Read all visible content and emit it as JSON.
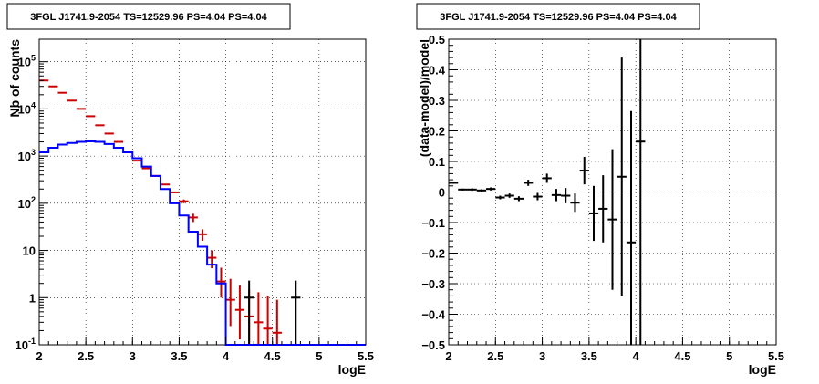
{
  "chart_data": [
    {
      "type": "line",
      "panel": "left",
      "title": "3FGL J1741.9-2054 TS=12529.96 PS=4.04 PS=4.04",
      "xlabel": "logE",
      "ylabel": "Nb of counts",
      "xlim": [
        2,
        5.5
      ],
      "ylim": [
        0.1,
        300000
      ],
      "yscale": "log",
      "grid": true,
      "x_ticks": [
        "2",
        "2.5",
        "3",
        "3.5",
        "4",
        "4.5",
        "5",
        "5.5"
      ],
      "y_ticks": [
        "10^-1",
        "1",
        "10",
        "10^2",
        "10^3",
        "10^4",
        "10^5"
      ],
      "series": [
        {
          "color": "#0000ff",
          "kind": "step-histogram",
          "bin_edges": [
            2.0,
            2.1,
            2.2,
            2.3,
            2.4,
            2.5,
            2.6,
            2.7,
            2.8,
            2.9,
            3.0,
            3.1,
            3.2,
            3.3,
            3.4,
            3.5,
            3.6,
            3.7,
            3.8,
            3.9,
            4.0,
            4.1,
            4.2,
            4.3,
            4.4,
            4.5,
            4.6,
            4.7,
            4.8,
            4.9,
            5.0,
            5.1,
            5.2,
            5.3,
            5.4,
            5.5
          ],
          "values": [
            1200,
            1500,
            1750,
            1900,
            2000,
            2050,
            2000,
            1800,
            1500,
            1200,
            900,
            600,
            380,
            200,
            100,
            55,
            25,
            12,
            5,
            2,
            0.1,
            0.1,
            0.1,
            0.1,
            0.1,
            0.1,
            0.1,
            0.1,
            0.1,
            0.1,
            0.1,
            0.1,
            0.1,
            0.1,
            0.1
          ]
        },
        {
          "color": "#cc0000",
          "kind": "points-with-errors",
          "x": [
            2.05,
            2.15,
            2.25,
            2.35,
            2.45,
            2.55,
            2.65,
            2.75,
            2.85,
            2.95,
            3.05,
            3.15,
            3.25,
            3.35,
            3.45,
            3.55,
            3.65,
            3.75,
            3.85,
            3.95,
            4.05,
            4.15,
            4.25,
            4.35,
            4.45,
            4.55
          ],
          "y": [
            40000,
            30000,
            22000,
            15000,
            10000,
            7000,
            4500,
            3000,
            2000,
            1200,
            800,
            550,
            380,
            250,
            170,
            110,
            50,
            22,
            7,
            2.2,
            0.9,
            0.55,
            0.4,
            0.3,
            0.22,
            0.18
          ],
          "ylo": [
            40000,
            30000,
            22000,
            15000,
            10000,
            7000,
            4500,
            3000,
            2000,
            1200,
            800,
            550,
            380,
            250,
            170,
            100,
            40,
            16,
            4.2,
            1,
            0.25,
            0.13,
            0.1,
            0.1,
            0.1,
            0.1
          ],
          "yhi": [
            40000,
            30000,
            22000,
            15000,
            10000,
            7000,
            4500,
            3000,
            2000,
            1200,
            800,
            550,
            380,
            250,
            170,
            120,
            60,
            28,
            10,
            4.3,
            2.5,
            1.8,
            1.5,
            1.3,
            1.1,
            0.9
          ]
        },
        {
          "color": "#000000",
          "kind": "points-with-errors",
          "x": [
            4.25,
            4.75
          ],
          "y": [
            1,
            1
          ],
          "ylo": [
            0.1,
            0.1
          ],
          "yhi": [
            2.3,
            2.3
          ]
        }
      ]
    },
    {
      "type": "scatter",
      "panel": "right",
      "title": "3FGL J1741.9-2054 TS=12529.96 PS=4.04 PS=4.04",
      "xlabel": "logE",
      "ylabel": "(data-model)/model",
      "xlim": [
        2,
        5.5
      ],
      "ylim": [
        -0.5,
        0.5
      ],
      "grid": true,
      "x_ticks": [
        "2",
        "2.5",
        "3",
        "3.5",
        "4",
        "4.5",
        "5",
        "5.5"
      ],
      "y_ticks": [
        "−0.5",
        "−0.4",
        "−0.3",
        "−0.2",
        "−0.1",
        "0",
        "0.1",
        "0.2",
        "0.3",
        "0.4",
        "0.5"
      ],
      "series": [
        {
          "color": "#000000",
          "kind": "points-with-errors",
          "x": [
            2.05,
            2.15,
            2.25,
            2.35,
            2.45,
            2.55,
            2.65,
            2.75,
            2.85,
            2.95,
            3.05,
            3.15,
            3.25,
            3.35,
            3.45,
            3.55,
            3.65,
            3.75,
            3.85,
            3.95,
            4.05
          ],
          "y": [
            0.03,
            0.008,
            0.008,
            0.005,
            0.01,
            -0.018,
            -0.012,
            -0.022,
            0.03,
            -0.015,
            0.045,
            -0.01,
            -0.012,
            -0.035,
            0.07,
            -0.07,
            -0.055,
            -0.09,
            0.05,
            -0.165,
            0.165
          ],
          "err": [
            0.003,
            0.003,
            0.004,
            0.004,
            0.005,
            0.006,
            0.007,
            0.008,
            0.01,
            0.012,
            0.015,
            0.02,
            0.025,
            0.03,
            0.045,
            0.09,
            0.11,
            0.23,
            0.39,
            0.43,
            0.84
          ]
        }
      ]
    }
  ]
}
